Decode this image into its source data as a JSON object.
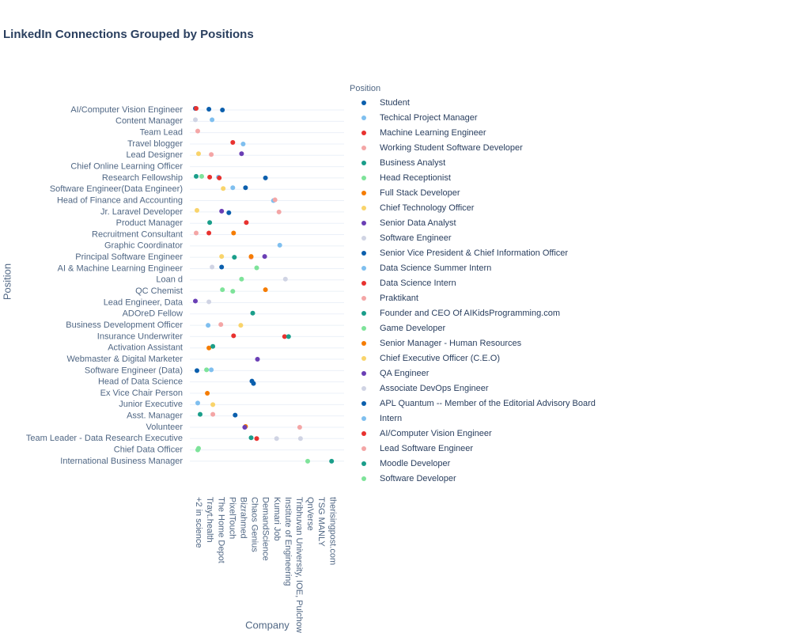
{
  "chart_data": {
    "type": "scatter",
    "title": "LinkedIn Connections Grouped by Positions",
    "x_label": "Company",
    "y_label": "Position",
    "legend_title": "Position",
    "grid": true,
    "x_categories": [
      "+2 in science",
      "Trayt.health",
      "The Home Depot",
      "PixelTouch",
      "Bizrahmed",
      "Chaos Genius",
      "DemandScience",
      "Kumari Job",
      "Institute of Engineering",
      "Tribhuvan University, IOE, Pulchow",
      "QnVerse",
      "TSG MANLY",
      "therisingpost.com"
    ],
    "y_categories": [
      "AI/Computer Vision Engineer",
      "Content Manager",
      "Team Lead",
      "Travel blogger",
      "Lead Designer",
      "Chief Online Learning Officer",
      "Research Fellowship",
      "Software Engineer(Data Engineer)",
      "Head of Finance and Accounting",
      "Jr. Laravel Developer",
      "Product Manager",
      "Recruitment Consultant",
      "Graphic Coordinator",
      "Principal Software Engineer",
      "AI & Machine Learning Engineer",
      "Loan d",
      "QC Chemist",
      "Lead Engineer, Data",
      "ADOreD Fellow",
      "Business Development Officer",
      "Insurance Underwriter",
      "Activation Assistant",
      "Webmaster & Digital Marketer",
      "Software Engineer (Data)",
      "Head of Data Science",
      "Ex Vice Chair Person",
      "Junior Executive",
      "Asst. Manager",
      "Volunteer",
      "Team Leader - Data Research Executive",
      "Chief Data Officer",
      "International Business Manager"
    ],
    "series": [
      {
        "name": "Student",
        "color": "#0b5fad",
        "x": [
          "+2 in science",
          "Trayt.health",
          "The Home Depot",
          "PixelTouch",
          "Chaos Genius"
        ],
        "y": [
          "AI/Computer Vision Engineer",
          "AI/Computer Vision Engineer",
          "AI/Computer Vision Engineer",
          "Jr. Laravel Developer",
          "Head of Data Science"
        ]
      },
      {
        "name": "Techical Project Manager",
        "color": "#7fbfef",
        "x": [
          "Trayt.health",
          "The Home Depot",
          "Bizrahmed"
        ],
        "y": [
          "Content Manager",
          "Research Fellowship",
          "Travel blogger"
        ]
      },
      {
        "name": "Machine Learning Engineer",
        "color": "#e8322f",
        "x": [
          "PixelTouch",
          "Bizrahmed",
          "The Home Depot"
        ],
        "y": [
          "Travel blogger",
          "Product Manager",
          "Research Fellowship"
        ]
      },
      {
        "name": "Working Student Software Developer",
        "color": "#f4a6a6",
        "x": [
          "+2 in science",
          "Trayt.health",
          "Chaos Genius"
        ],
        "y": [
          "Team Lead",
          "Lead Designer",
          "Principal Software Engineer"
        ]
      },
      {
        "name": "Business Analyst",
        "color": "#1a9e8a",
        "x": [
          "+2 in science",
          "Trayt.health",
          "PixelTouch"
        ],
        "y": [
          "Research Fellowship",
          "Product Manager",
          "Principal Software Engineer"
        ]
      },
      {
        "name": "Head Receptionist",
        "color": "#7ee39a",
        "x": [
          "+2 in science",
          "Bizrahmed",
          "PixelTouch"
        ],
        "y": [
          "Research Fellowship",
          "Loan d",
          "QC Chemist"
        ]
      },
      {
        "name": "Full Stack Developer",
        "color": "#f57c00",
        "x": [
          "PixelTouch",
          "Chaos Genius",
          "Trayt.health"
        ],
        "y": [
          "Recruitment Consultant",
          "Principal Software Engineer",
          "Activation Assistant"
        ]
      },
      {
        "name": "Chief Technology Officer",
        "color": "#f9d46b",
        "x": [
          "+2 in science",
          "The Home Depot",
          "Bizrahmed"
        ],
        "y": [
          "Lead Designer",
          "Software Engineer(Data Engineer)",
          "Business Development Officer"
        ]
      },
      {
        "name": "Senior Data Analyst",
        "color": "#6a3fb5",
        "x": [
          "Bizrahmed",
          "The Home Depot",
          "Chaos Genius"
        ],
        "y": [
          "Lead Designer",
          "Jr. Laravel Developer",
          "Webmaster & Digital Marketer"
        ]
      },
      {
        "name": "Software Engineer",
        "color": "#d0d4e4",
        "x": [
          "+2 in science",
          "Trayt.health",
          "Tribhuvan University, IOE, Pulchow"
        ],
        "y": [
          "Content Manager",
          "Lead Engineer, Data",
          "Team Leader - Data Research Executive"
        ]
      },
      {
        "name": "Senior Vice President & Chief Information Officer",
        "color": "#0b5fad",
        "x": [
          "Bizrahmed",
          "Chaos Genius",
          "DemandScience"
        ],
        "y": [
          "Software Engineer(Data Engineer)",
          "Head of Data Science",
          "Research Fellowship"
        ]
      },
      {
        "name": "Data Science Summer Intern",
        "color": "#7fbfef",
        "x": [
          "PixelTouch",
          "Kumari Job",
          "Trayt.health"
        ],
        "y": [
          "Software Engineer(Data Engineer)",
          "Graphic Coordinator",
          "Business Development Officer"
        ]
      },
      {
        "name": "Data Science Intern",
        "color": "#e8322f",
        "x": [
          "Trayt.health",
          "PixelTouch",
          "Institute of Engineering"
        ],
        "y": [
          "Recruitment Consultant",
          "Insurance Underwriter",
          "Insurance Underwriter"
        ]
      },
      {
        "name": "Praktikant",
        "color": "#f4a6a6",
        "x": [
          "+2 in science",
          "The Home Depot",
          "Kumari Job"
        ],
        "y": [
          "Recruitment Consultant",
          "Business Development Officer",
          "Jr. Laravel Developer"
        ]
      },
      {
        "name": "Founder and CEO Of AIKidsProgramming.com",
        "color": "#1a9e8a",
        "x": [
          "Trayt.health",
          "Chaos Genius",
          "Institute of Engineering"
        ],
        "y": [
          "Activation Assistant",
          "ADOreD Fellow",
          "Insurance Underwriter"
        ]
      },
      {
        "name": "Game Developer",
        "color": "#7ee39a",
        "x": [
          "The Home Depot",
          "Trayt.health",
          "+2 in science"
        ],
        "y": [
          "QC Chemist",
          "Software Engineer (Data)",
          "Chief Data Officer"
        ]
      },
      {
        "name": "Senior Manager - Human Resources",
        "color": "#f57c00",
        "x": [
          "DemandScience",
          "Bizrahmed",
          "Trayt.health"
        ],
        "y": [
          "QC Chemist",
          "Volunteer",
          "Ex Vice Chair Person"
        ]
      },
      {
        "name": "Chief Executive Officer (C.E.O)",
        "color": "#f9d46b",
        "x": [
          "+2 in science",
          "The Home Depot",
          "Trayt.health"
        ],
        "y": [
          "Jr. Laravel Developer",
          "Principal Software Engineer",
          "Junior Executive"
        ]
      },
      {
        "name": "QA Engineer",
        "color": "#6a3fb5",
        "x": [
          "+2 in science",
          "DemandScience",
          "Bizrahmed"
        ],
        "y": [
          "Lead Engineer, Data",
          "Principal Software Engineer",
          "Volunteer"
        ]
      },
      {
        "name": "Associate DevOps Engineer",
        "color": "#d0d4e4",
        "x": [
          "Trayt.health",
          "Institute of Engineering",
          "Kumari Job"
        ],
        "y": [
          "AI & Machine Learning Engineer",
          "Loan d",
          "Team Leader - Data Research Executive"
        ]
      },
      {
        "name": "APL Quantum -- Member of the Editorial Advisory Board",
        "color": "#0b5fad",
        "x": [
          "The Home Depot",
          "PixelTouch",
          "+2 in science"
        ],
        "y": [
          "AI & Machine Learning Engineer",
          "Asst. Manager",
          "Software Engineer (Data)"
        ]
      },
      {
        "name": "Intern",
        "color": "#7fbfef",
        "x": [
          "+2 in science",
          "Trayt.health",
          "Kumari Job"
        ],
        "y": [
          "Junior Executive",
          "Software Engineer (Data)",
          "Head of Finance and Accounting"
        ]
      },
      {
        "name": "AI/Computer Vision Engineer",
        "color": "#e8322f",
        "x": [
          "+2 in science",
          "Trayt.health",
          "Chaos Genius"
        ],
        "y": [
          "AI/Computer Vision Engineer",
          "Research Fellowship",
          "Team Leader - Data Research Executive"
        ]
      },
      {
        "name": "Lead Software Engineer",
        "color": "#f4a6a6",
        "x": [
          "Trayt.health",
          "Kumari Job",
          "Tribhuvan University, IOE, Pulchow"
        ],
        "y": [
          "Asst. Manager",
          "Head of Finance and Accounting",
          "Volunteer"
        ]
      },
      {
        "name": "Moodle Developer",
        "color": "#1a9e8a",
        "x": [
          "+2 in science",
          "Chaos Genius",
          "therisingpost.com"
        ],
        "y": [
          "Asst. Manager",
          "Team Leader - Data Research Executive",
          "International Business Manager"
        ]
      },
      {
        "name": "Software Developer",
        "color": "#7ee39a",
        "x": [
          "+2 in science",
          "Chaos Genius",
          "QnVerse"
        ],
        "y": [
          "Chief Data Officer",
          "AI & Machine Learning Engineer",
          "Chief Executive Officer (C.E.O)"
        ]
      }
    ]
  }
}
